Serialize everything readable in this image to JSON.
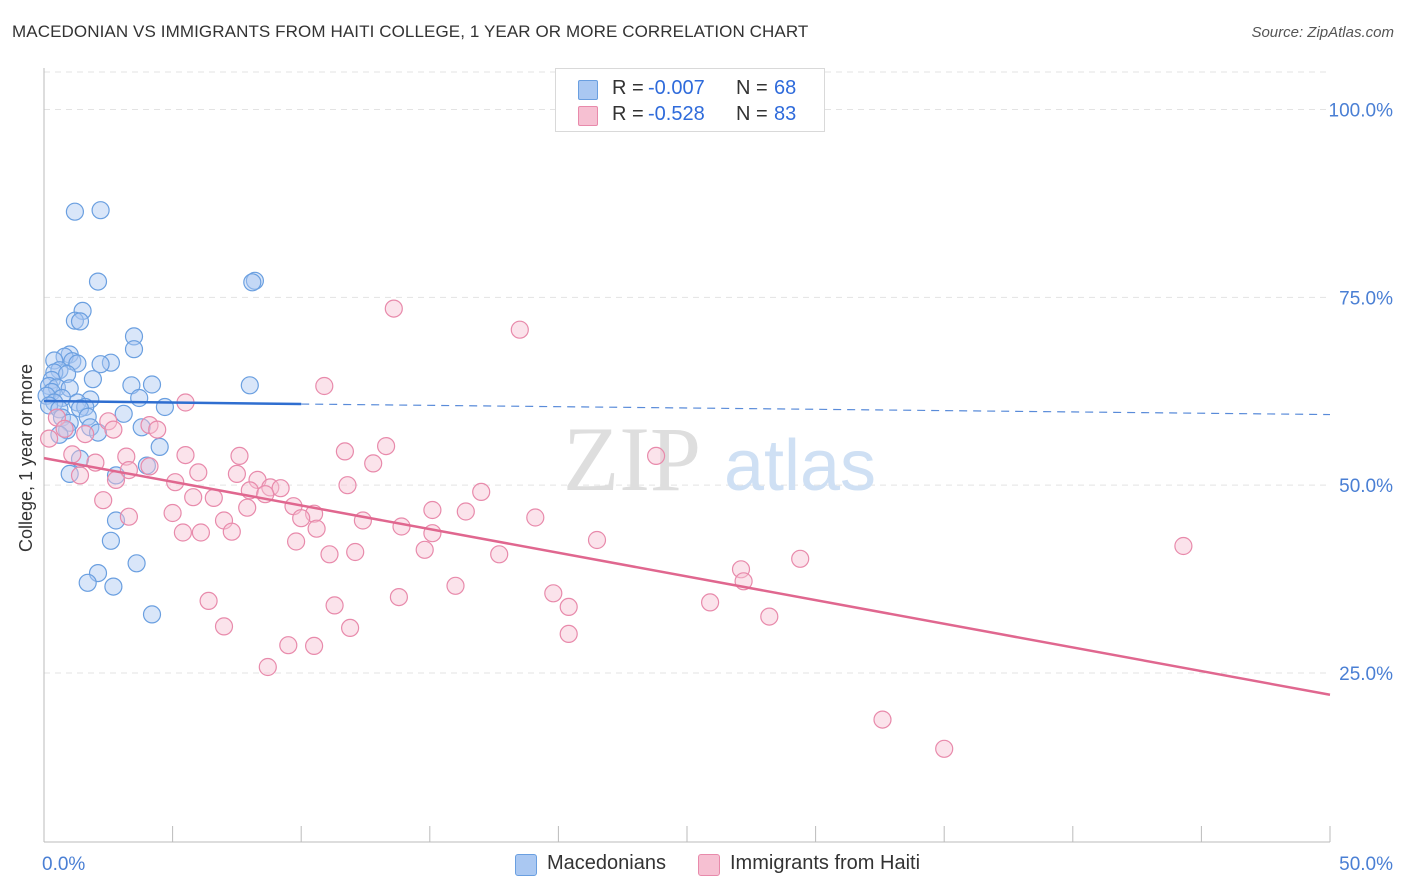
{
  "title": "MACEDONIAN VS IMMIGRANTS FROM HAITI COLLEGE, 1 YEAR OR MORE CORRELATION CHART",
  "source": "Source: ZipAtlas.com",
  "watermark": {
    "zip": "ZIP",
    "atlas": "atlas"
  },
  "legend_top": [
    {
      "r_label": "R =",
      "r_value": "-0.007",
      "n_label": "N =",
      "n_value": "68"
    },
    {
      "r_label": "R =",
      "r_value": "-0.528",
      "n_label": "N =",
      "n_value": "83"
    }
  ],
  "legend_bottom": [
    {
      "label": "Macedonians"
    },
    {
      "label": "Immigrants from Haiti"
    }
  ],
  "colors": {
    "blue_fill": "#aac8f2",
    "blue_stroke": "#6a9fe0",
    "blue_line": "#2f6ed0",
    "pink_fill": "#f6c0d2",
    "pink_stroke": "#e88aab",
    "pink_line": "#e0678f",
    "axis_text": "#4a7fd4",
    "grid": "#e3e3e3"
  },
  "chart_data": {
    "type": "scatter",
    "title": "MACEDONIAN VS IMMIGRANTS FROM HAITI COLLEGE, 1 YEAR OR MORE CORRELATION CHART",
    "xlabel": "",
    "ylabel": "College, 1 year or more",
    "xlim": [
      0,
      50
    ],
    "ylim": [
      2.5,
      105
    ],
    "x_tick_labels": [
      {
        "value": 0,
        "label": "0.0%"
      },
      {
        "value": 50,
        "label": "50.0%"
      }
    ],
    "y_tick_labels": [
      {
        "value": 100,
        "label": "100.0%"
      },
      {
        "value": 75,
        "label": "75.0%"
      },
      {
        "value": 50,
        "label": "50.0%"
      },
      {
        "value": 25,
        "label": "25.0%"
      }
    ],
    "series": [
      {
        "name": "Macedonians",
        "r": -0.007,
        "n": 68,
        "trend": {
          "solid": [
            [
              0,
              61.2
            ],
            [
              10,
              60.8
            ]
          ],
          "dashed": [
            [
              10,
              60.8
            ],
            [
              50,
              59.4
            ]
          ]
        },
        "points": [
          [
            1.2,
            86.4
          ],
          [
            2.2,
            86.6
          ],
          [
            2.1,
            77.1
          ],
          [
            8.2,
            77.2
          ],
          [
            8.1,
            77.0
          ],
          [
            1.5,
            73.2
          ],
          [
            1.2,
            71.9
          ],
          [
            1.4,
            71.8
          ],
          [
            3.5,
            69.8
          ],
          [
            3.5,
            68.1
          ],
          [
            1.0,
            67.4
          ],
          [
            0.8,
            67.1
          ],
          [
            0.4,
            66.6
          ],
          [
            1.1,
            66.5
          ],
          [
            1.3,
            66.2
          ],
          [
            2.6,
            66.3
          ],
          [
            2.2,
            66.1
          ],
          [
            0.6,
            65.3
          ],
          [
            0.4,
            65.0
          ],
          [
            0.9,
            64.8
          ],
          [
            0.3,
            64.0
          ],
          [
            1.9,
            64.1
          ],
          [
            0.2,
            63.2
          ],
          [
            0.5,
            63.0
          ],
          [
            1.0,
            62.9
          ],
          [
            3.4,
            63.3
          ],
          [
            4.2,
            63.4
          ],
          [
            8.0,
            63.3
          ],
          [
            0.3,
            62.4
          ],
          [
            0.1,
            61.9
          ],
          [
            0.7,
            61.6
          ],
          [
            1.8,
            61.4
          ],
          [
            3.7,
            61.6
          ],
          [
            0.4,
            61.0
          ],
          [
            1.3,
            61.0
          ],
          [
            0.2,
            60.6
          ],
          [
            1.6,
            60.4
          ],
          [
            0.6,
            60.1
          ],
          [
            1.4,
            60.2
          ],
          [
            4.7,
            60.4
          ],
          [
            3.1,
            59.5
          ],
          [
            0.7,
            59.0
          ],
          [
            1.7,
            59.1
          ],
          [
            1.0,
            58.3
          ],
          [
            1.8,
            57.7
          ],
          [
            3.8,
            57.7
          ],
          [
            0.9,
            57.3
          ],
          [
            2.1,
            57.0
          ],
          [
            0.6,
            56.7
          ],
          [
            4.5,
            55.1
          ],
          [
            1.4,
            53.5
          ],
          [
            4.0,
            52.6
          ],
          [
            1.0,
            51.5
          ],
          [
            2.8,
            51.3
          ],
          [
            2.8,
            45.3
          ],
          [
            2.6,
            42.6
          ],
          [
            3.6,
            39.6
          ],
          [
            2.1,
            38.3
          ],
          [
            1.7,
            37.0
          ],
          [
            2.7,
            36.5
          ],
          [
            4.2,
            32.8
          ]
        ]
      },
      {
        "name": "Immigrants from Haiti",
        "r": -0.528,
        "n": 83,
        "trend": {
          "solid": [
            [
              0,
              53.6
            ],
            [
              50,
              22.1
            ]
          ]
        },
        "points": [
          [
            13.6,
            73.5
          ],
          [
            18.5,
            70.7
          ],
          [
            10.9,
            63.2
          ],
          [
            5.5,
            61.0
          ],
          [
            0.5,
            59.0
          ],
          [
            2.5,
            58.5
          ],
          [
            4.1,
            58.0
          ],
          [
            2.7,
            57.4
          ],
          [
            4.4,
            57.4
          ],
          [
            0.8,
            57.5
          ],
          [
            1.6,
            56.8
          ],
          [
            0.2,
            56.2
          ],
          [
            13.3,
            55.2
          ],
          [
            11.7,
            54.5
          ],
          [
            3.2,
            53.8
          ],
          [
            1.1,
            54.1
          ],
          [
            5.5,
            54.0
          ],
          [
            7.6,
            53.9
          ],
          [
            23.8,
            53.9
          ],
          [
            2.0,
            53.0
          ],
          [
            12.8,
            52.9
          ],
          [
            4.1,
            52.5
          ],
          [
            3.3,
            52.0
          ],
          [
            6.0,
            51.7
          ],
          [
            7.5,
            51.5
          ],
          [
            1.4,
            51.3
          ],
          [
            8.3,
            50.7
          ],
          [
            2.8,
            50.7
          ],
          [
            5.1,
            50.4
          ],
          [
            11.8,
            50.0
          ],
          [
            8.8,
            49.7
          ],
          [
            9.2,
            49.6
          ],
          [
            8.0,
            49.3
          ],
          [
            17.0,
            49.1
          ],
          [
            8.6,
            48.8
          ],
          [
            5.8,
            48.4
          ],
          [
            6.6,
            48.3
          ],
          [
            2.3,
            48.0
          ],
          [
            9.7,
            47.2
          ],
          [
            7.9,
            47.0
          ],
          [
            15.1,
            46.7
          ],
          [
            16.4,
            46.5
          ],
          [
            5.0,
            46.3
          ],
          [
            10.5,
            46.2
          ],
          [
            3.3,
            45.8
          ],
          [
            10.0,
            45.6
          ],
          [
            19.1,
            45.7
          ],
          [
            7.0,
            45.3
          ],
          [
            12.4,
            45.3
          ],
          [
            13.9,
            44.5
          ],
          [
            10.6,
            44.2
          ],
          [
            7.3,
            43.8
          ],
          [
            15.1,
            43.6
          ],
          [
            6.1,
            43.7
          ],
          [
            5.4,
            43.7
          ],
          [
            9.8,
            42.5
          ],
          [
            21.5,
            42.7
          ],
          [
            44.3,
            41.9
          ],
          [
            14.8,
            41.4
          ],
          [
            12.1,
            41.1
          ],
          [
            11.1,
            40.8
          ],
          [
            17.7,
            40.8
          ],
          [
            29.4,
            40.2
          ],
          [
            27.1,
            38.8
          ],
          [
            27.2,
            37.2
          ],
          [
            16.0,
            36.6
          ],
          [
            19.8,
            35.6
          ],
          [
            13.8,
            35.1
          ],
          [
            6.4,
            34.6
          ],
          [
            25.9,
            34.4
          ],
          [
            11.3,
            34.0
          ],
          [
            20.4,
            33.8
          ],
          [
            7.0,
            31.2
          ],
          [
            11.9,
            31.0
          ],
          [
            20.4,
            30.2
          ],
          [
            28.2,
            32.5
          ],
          [
            9.5,
            28.7
          ],
          [
            10.5,
            28.6
          ],
          [
            8.7,
            25.8
          ],
          [
            32.6,
            18.8
          ],
          [
            35.0,
            14.9
          ]
        ]
      }
    ]
  }
}
